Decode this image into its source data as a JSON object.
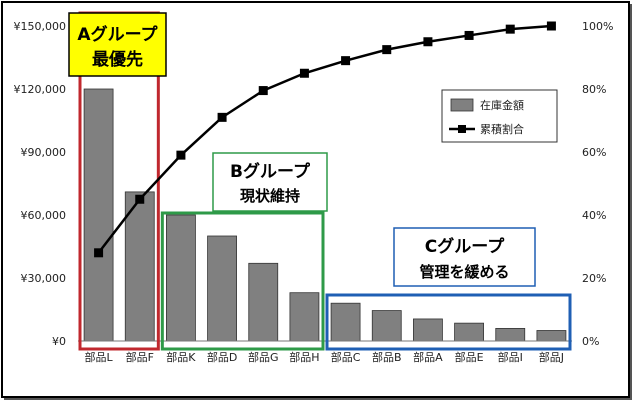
{
  "chart_data": {
    "type": "bar",
    "combo": "bar+line (pareto)",
    "categories": [
      "部品L",
      "部品F",
      "部品K",
      "部品D",
      "部品G",
      "部品H",
      "部品C",
      "部品B",
      "部品A",
      "部品E",
      "部品I",
      "部品J"
    ],
    "series": [
      {
        "name": "在庫金額",
        "type": "bar",
        "axis": "left",
        "values": [
          120000,
          71000,
          60000,
          50000,
          37000,
          23000,
          18000,
          14500,
          10500,
          8500,
          6000,
          5000
        ]
      },
      {
        "name": "累積割合",
        "type": "line",
        "axis": "right",
        "marker": "square",
        "values": [
          28,
          45,
          59,
          71,
          79.5,
          85,
          89,
          92.5,
          95,
          97,
          99,
          100
        ]
      }
    ],
    "y_left": {
      "ylim": [
        0,
        150000
      ],
      "ticks": [
        "¥0",
        "¥30,000",
        "¥60,000",
        "¥90,000",
        "¥120,000",
        "¥150,000"
      ],
      "tick_values": [
        0,
        30000,
        60000,
        90000,
        120000,
        150000
      ]
    },
    "y_right": {
      "ylim": [
        0,
        100
      ],
      "ticks": [
        "0%",
        "20%",
        "40%",
        "60%",
        "80%",
        "100%"
      ],
      "tick_values": [
        0,
        20,
        40,
        60,
        80,
        100
      ]
    },
    "grid": false,
    "legend": {
      "placement": "top-right",
      "items": [
        "在庫金額",
        "累積割合"
      ]
    },
    "colors": {
      "bar_fill": "#808080",
      "bar_stroke": "#333333",
      "line": "#000000"
    },
    "annotations": [
      {
        "id": "group-a",
        "line1": "Aグループ",
        "line2": "最優先",
        "border": "#c0282e",
        "label_bg": "#ffff00",
        "label_border": "#000000",
        "from": 0,
        "to": 1
      },
      {
        "id": "group-b",
        "line1": "Bグループ",
        "line2": "現状維持",
        "border": "#2e9a48",
        "label_bg": "#ffffff",
        "label_border": "#2e9a48",
        "from": 2,
        "to": 5
      },
      {
        "id": "group-c",
        "line1": "Cグループ",
        "line2": "管理を緩める",
        "border": "#1f5fb4",
        "label_bg": "#ffffff",
        "label_border": "#1f5fb4",
        "from": 6,
        "to": 11
      }
    ]
  }
}
